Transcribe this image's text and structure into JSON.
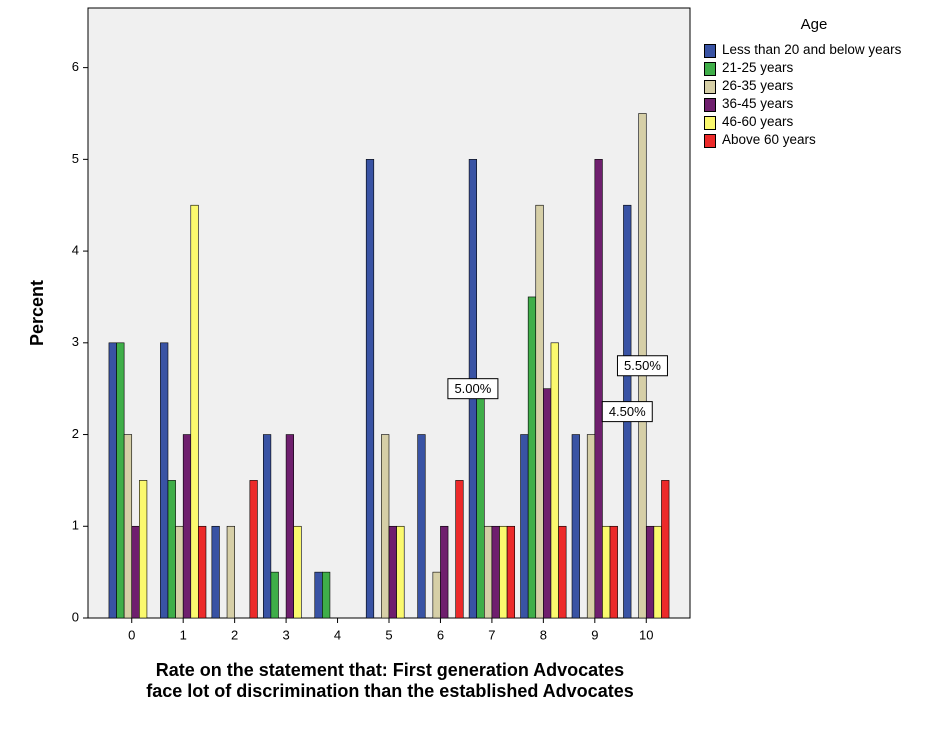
{
  "chart_data": {
    "type": "bar",
    "x_label": "Rate on the statement that: First generation Advocates face lot of discrimination than the established Advocates",
    "y_label": "Percent",
    "legend_title": "Age",
    "legend": "right",
    "categories": [
      "0",
      "1",
      "2",
      "3",
      "4",
      "5",
      "6",
      "7",
      "8",
      "9",
      "10"
    ],
    "series": [
      {
        "name": "Less than 20 and below years",
        "color": "#3953a4",
        "values": [
          3,
          3,
          1,
          2,
          0.5,
          5,
          2,
          5,
          2,
          2,
          4.5
        ]
      },
      {
        "name": "21-25 years",
        "color": "#3fae49",
        "values": [
          3,
          1.5,
          0,
          0.5,
          0.5,
          0,
          0,
          2.5,
          3.5,
          0,
          0
        ]
      },
      {
        "name": "26-35 years",
        "color": "#d6cfa7",
        "values": [
          2,
          1,
          1,
          0,
          0,
          2,
          0.5,
          1,
          4.5,
          2,
          5.5
        ]
      },
      {
        "name": "36-45 years",
        "color": "#6f1f6e",
        "values": [
          1,
          2,
          0,
          2,
          0,
          1,
          1,
          1,
          2.5,
          5,
          1
        ]
      },
      {
        "name": "46-60 years",
        "color": "#fbf96e",
        "values": [
          1.5,
          4.5,
          0,
          1,
          0,
          1,
          0,
          1,
          3,
          1,
          1
        ]
      },
      {
        "name": "Above 60 years",
        "color": "#ec2a2a",
        "values": [
          0,
          1,
          1.5,
          0,
          0,
          0,
          1.5,
          1,
          1,
          1,
          1.5
        ]
      }
    ],
    "annotations": [
      {
        "label": "5.00%",
        "value": 5,
        "series": "Less than 20 and below years",
        "category": "7"
      },
      {
        "label": "5.50%",
        "value": 5.5,
        "series": "26-35 years",
        "category": "10"
      },
      {
        "label": "4.50%",
        "value": 4.5,
        "series": "Less than 20 and below years",
        "category": "10"
      }
    ],
    "ylim": [
      0,
      6.65
    ],
    "yticks": [
      0,
      1,
      2,
      3,
      4,
      5,
      6
    ],
    "plot_background": "#f0f0f0"
  }
}
